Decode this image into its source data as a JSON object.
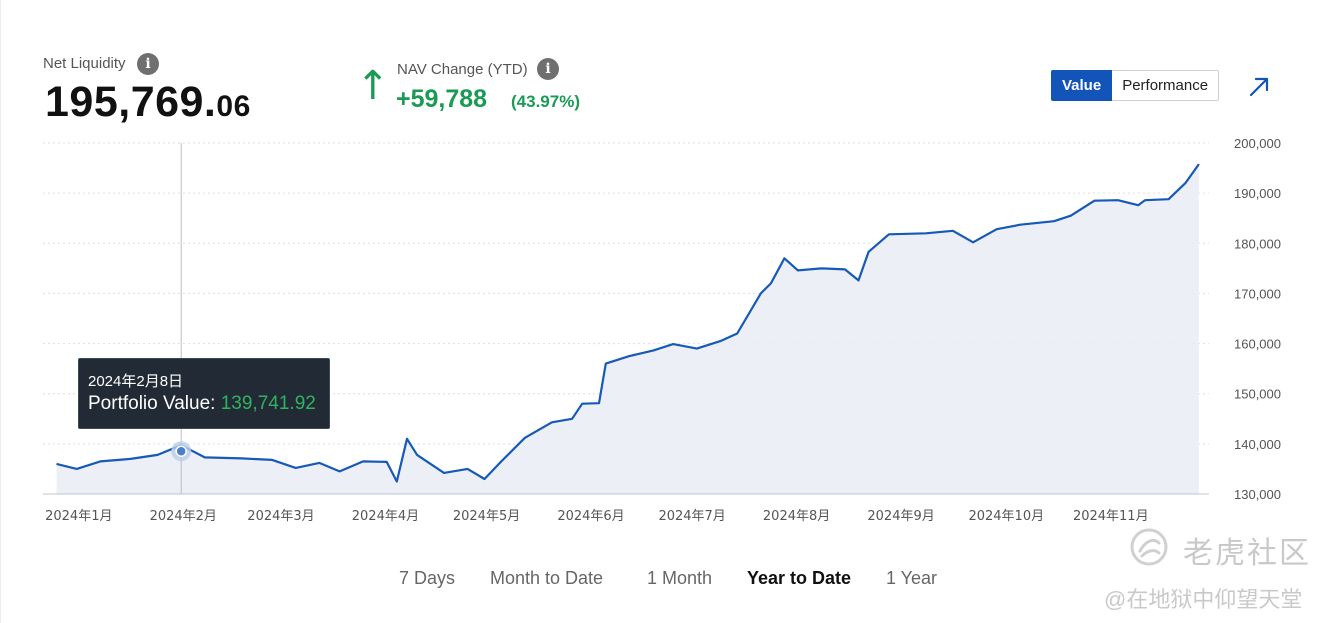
{
  "summary": {
    "net_liquidity_label": "Net Liquidity",
    "net_liquidity_int": "195,769.",
    "net_liquidity_dec": "06",
    "nav_change_label": "NAV Change (YTD)",
    "nav_change_value": "+59,788",
    "nav_change_pct": "(43.97%)",
    "nav_direction_icon": "arrow-up-icon",
    "info_icon_glyph": "i"
  },
  "view_toggle": {
    "options": [
      "Value",
      "Performance"
    ],
    "selected": "Value"
  },
  "tooltip": {
    "date": "2024年2月8日",
    "label": "Portfolio Value: ",
    "value": "139,741.92"
  },
  "range_tabs": {
    "items": [
      "7 Days",
      "Month to Date",
      "1 Month",
      "Year to Date",
      "1 Year"
    ],
    "selected": "Year to Date"
  },
  "watermark": {
    "site": "老虎社区",
    "user": "@在地狱中仰望天堂"
  },
  "colors": {
    "line": "#1659b6",
    "positive": "#1a9a55",
    "accent": "#1354b9",
    "area": "#e9edf4"
  },
  "chart_data": {
    "type": "area",
    "y_ticks": [
      "130,000",
      "140,000",
      "150,000",
      "160,000",
      "170,000",
      "180,000",
      "190,000",
      "200,000"
    ],
    "ylim": [
      130000,
      200000
    ],
    "x_ticks": [
      "2024年1月",
      "2024年2月",
      "2024年3月",
      "2024年4月",
      "2024年5月",
      "2024年6月",
      "2024年7月",
      "2024年8月",
      "2024年9月",
      "2024年10月",
      "2024年11月"
    ],
    "grid": "horizontal dotted",
    "series": [
      {
        "points": [
          [
            "2024-01-02",
            136000
          ],
          [
            "2024-01-08",
            135000
          ],
          [
            "2024-01-15",
            136500
          ],
          [
            "2024-01-24",
            137000
          ],
          [
            "2024-02-01",
            137800
          ],
          [
            "2024-02-08",
            139742
          ],
          [
            "2024-02-15",
            137300
          ],
          [
            "2024-02-26",
            137100
          ],
          [
            "2024-03-06",
            136800
          ],
          [
            "2024-03-13",
            135200
          ],
          [
            "2024-03-20",
            136200
          ],
          [
            "2024-03-26",
            134500
          ],
          [
            "2024-04-02",
            136500
          ],
          [
            "2024-04-09",
            136400
          ],
          [
            "2024-04-12",
            132500
          ],
          [
            "2024-04-15",
            141000
          ],
          [
            "2024-04-18",
            137800
          ],
          [
            "2024-04-26",
            134200
          ],
          [
            "2024-05-03",
            135000
          ],
          [
            "2024-05-08",
            133000
          ],
          [
            "2024-05-13",
            136500
          ],
          [
            "2024-05-20",
            141200
          ],
          [
            "2024-05-28",
            144300
          ],
          [
            "2024-06-03",
            145000
          ],
          [
            "2024-06-06",
            148000
          ],
          [
            "2024-06-11",
            148100
          ],
          [
            "2024-06-13",
            156000
          ],
          [
            "2024-06-20",
            157500
          ],
          [
            "2024-06-27",
            158600
          ],
          [
            "2024-07-03",
            159900
          ],
          [
            "2024-07-10",
            159000
          ],
          [
            "2024-07-17",
            160500
          ],
          [
            "2024-07-22",
            162000
          ],
          [
            "2024-07-29",
            170000
          ],
          [
            "2024-08-01",
            172000
          ],
          [
            "2024-08-05",
            177000
          ],
          [
            "2024-08-09",
            174600
          ],
          [
            "2024-08-16",
            175000
          ],
          [
            "2024-08-23",
            174800
          ],
          [
            "2024-08-27",
            172600
          ],
          [
            "2024-08-30",
            178300
          ],
          [
            "2024-09-05",
            181800
          ],
          [
            "2024-09-16",
            182000
          ],
          [
            "2024-09-24",
            182500
          ],
          [
            "2024-09-30",
            180200
          ],
          [
            "2024-10-07",
            182800
          ],
          [
            "2024-10-14",
            183700
          ],
          [
            "2024-10-24",
            184400
          ],
          [
            "2024-10-29",
            185500
          ],
          [
            "2024-11-05",
            188500
          ],
          [
            "2024-11-12",
            188600
          ],
          [
            "2024-11-18",
            187600
          ],
          [
            "2024-11-20",
            188600
          ],
          [
            "2024-11-27",
            188800
          ],
          [
            "2024-12-02",
            192000
          ],
          [
            "2024-12-06",
            195800
          ]
        ]
      }
    ]
  }
}
